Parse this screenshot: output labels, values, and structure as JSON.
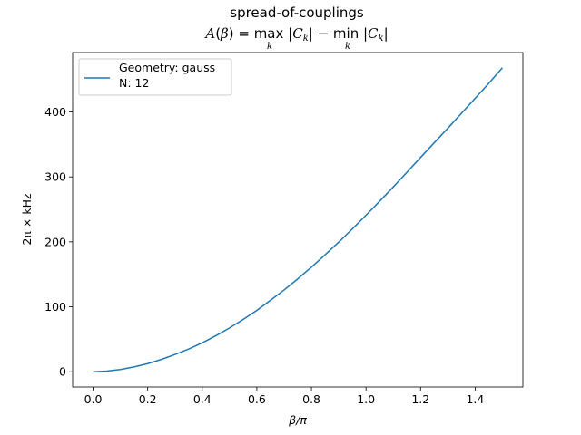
{
  "chart_data": {
    "type": "line",
    "title": "spread-of-couplings",
    "subtitle": "A(β) = max_k |C_k| − min_k |C_k|",
    "xlabel": "β/π",
    "ylabel": "2π × kHz",
    "xlim": [
      -0.075,
      1.575
    ],
    "ylim": [
      -23.4,
      491.4
    ],
    "x_ticks": [
      0.0,
      0.2,
      0.4,
      0.6,
      0.8,
      1.0,
      1.2,
      1.4
    ],
    "x_tick_labels": [
      "0.0",
      "0.2",
      "0.4",
      "0.6",
      "0.8",
      "1.0",
      "1.2",
      "1.4"
    ],
    "y_ticks": [
      0,
      100,
      200,
      300,
      400
    ],
    "y_tick_labels": [
      "0",
      "100",
      "200",
      "300",
      "400"
    ],
    "grid": false,
    "legend": {
      "placement": "upper-left",
      "entries": [
        "Geometry: gauss",
        "N: 12"
      ]
    },
    "series": [
      {
        "name": "Geometry: gauss\nN: 12",
        "color": "#1f77b4",
        "x": [
          0.0,
          0.05,
          0.1,
          0.15,
          0.2,
          0.25,
          0.3,
          0.35,
          0.4,
          0.45,
          0.5,
          0.55,
          0.6,
          0.65,
          0.7,
          0.75,
          0.8,
          0.85,
          0.9,
          0.95,
          1.0,
          1.05,
          1.1,
          1.15,
          1.2,
          1.25,
          1.3,
          1.35,
          1.4,
          1.45,
          1.5
        ],
        "y": [
          0.0,
          1.0,
          3.5,
          7.5,
          12.5,
          19.0,
          26.5,
          35.0,
          44.5,
          55.5,
          67.5,
          80.5,
          94.5,
          110.0,
          126.0,
          143.0,
          161.0,
          180.0,
          199.5,
          220.0,
          241.0,
          262.5,
          284.5,
          307.0,
          330.0,
          352.5,
          375.0,
          398.0,
          421.0,
          444.0,
          468.0
        ]
      }
    ]
  }
}
